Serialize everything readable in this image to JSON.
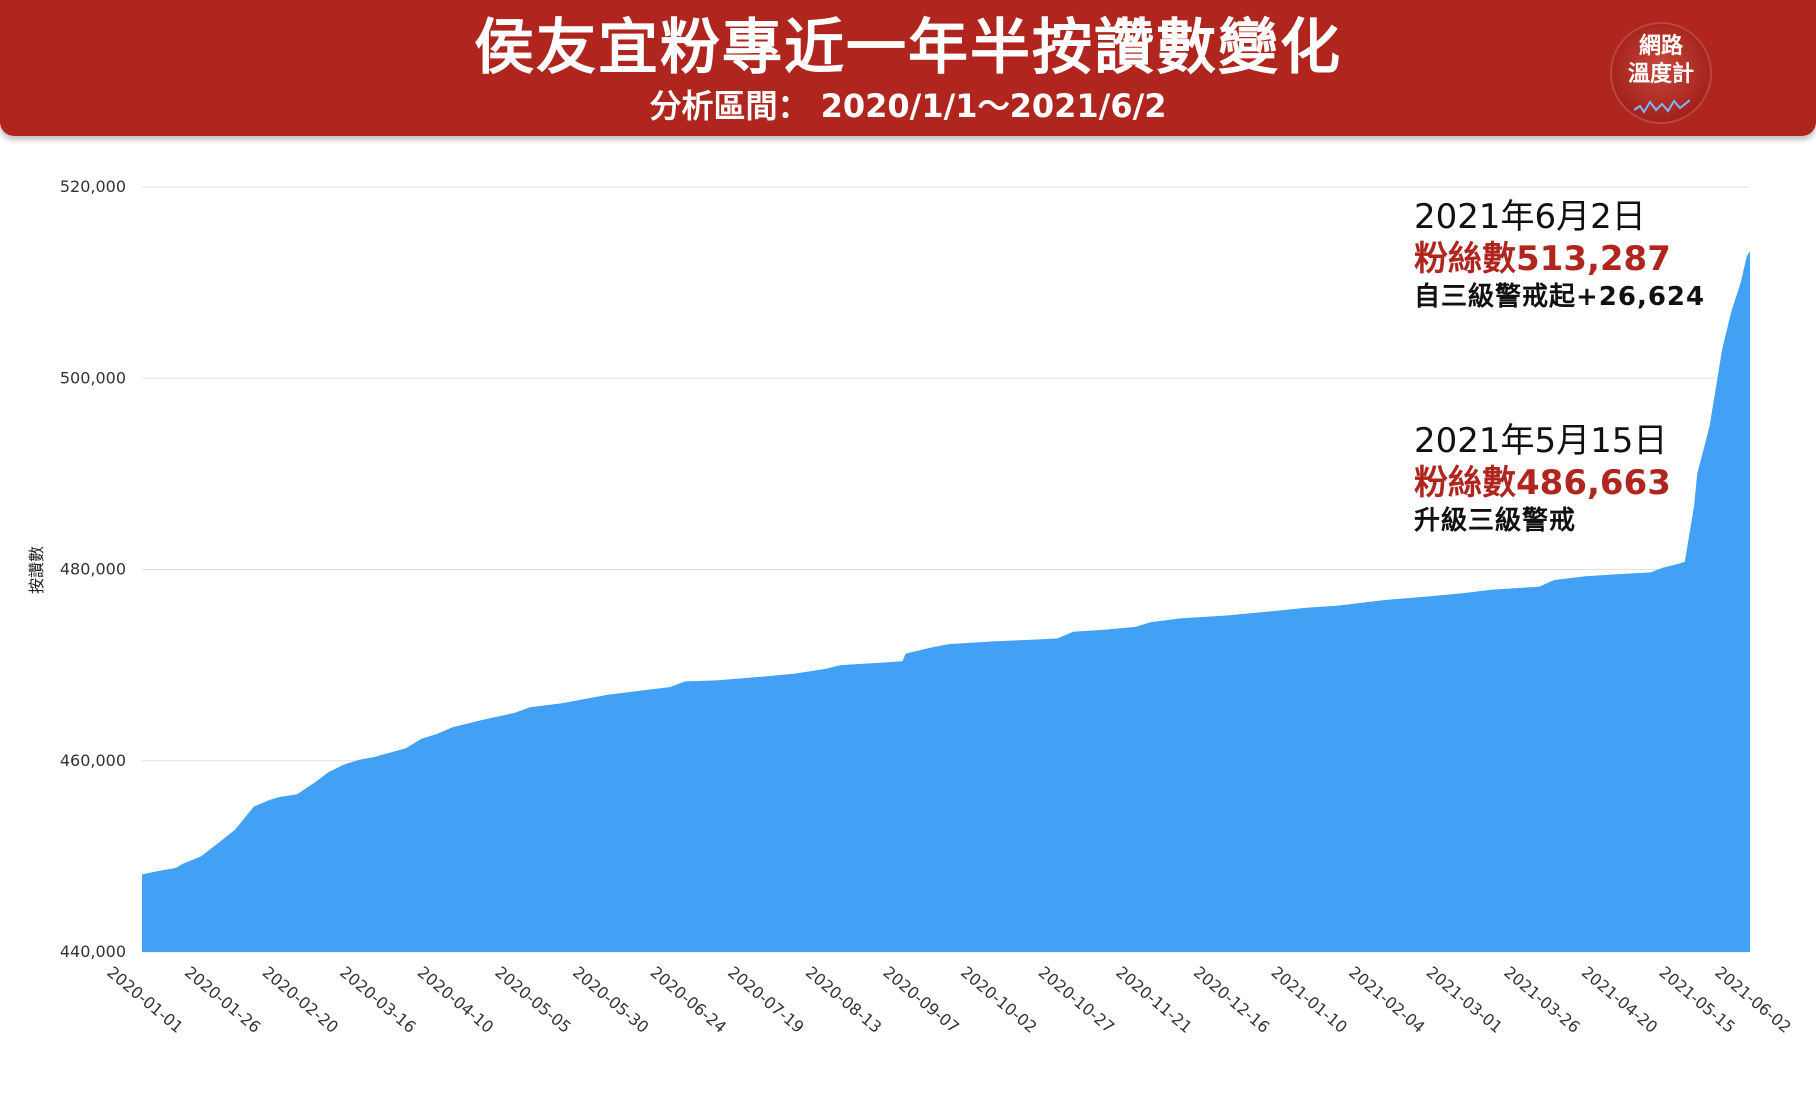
{
  "header": {
    "title": "侯友宜粉專近一年半按讚數變化",
    "subtitle": "分析區間： 2020/1/1～2021/6/2"
  },
  "logo": {
    "line1": "網路",
    "line2": "溫度計"
  },
  "colors": {
    "header": "#b0261e",
    "area": "#42a0f5",
    "annotation_value": "#b0261e"
  },
  "chart_data": {
    "type": "area",
    "title": "",
    "xlabel": "",
    "ylabel": "按讚數",
    "ylim": [
      440000,
      520000
    ],
    "yticks": [
      440000,
      460000,
      480000,
      500000,
      520000
    ],
    "ytick_labels": [
      "440,000",
      "460,000",
      "480,000",
      "500,000",
      "520,000"
    ],
    "xlim": [
      "2020-01-01",
      "2021-06-02"
    ],
    "xtick_labels": [
      "2020-01-01",
      "2020-01-26",
      "2020-02-20",
      "2020-03-16",
      "2020-04-10",
      "2020-05-05",
      "2020-05-30",
      "2020-06-24",
      "2020-07-19",
      "2020-08-13",
      "2020-09-07",
      "2020-10-02",
      "2020-10-27",
      "2020-11-21",
      "2020-12-16",
      "2021-01-10",
      "2021-02-04",
      "2021-03-01",
      "2021-03-26",
      "2021-04-20",
      "2021-05-15",
      "2021-06-02"
    ],
    "grid": true,
    "series": [
      {
        "x": [
          "2020-01-01",
          "2020-01-05",
          "2020-01-12",
          "2020-01-14",
          "2020-01-20",
          "2020-01-26",
          "2020-01-31",
          "2020-02-06",
          "2020-02-09",
          "2020-02-11",
          "2020-02-14",
          "2020-02-20",
          "2020-02-26",
          "2020-03-01",
          "2020-03-06",
          "2020-03-11",
          "2020-03-16",
          "2020-03-26",
          "2020-03-31",
          "2020-04-05",
          "2020-04-10",
          "2020-04-20",
          "2020-04-30",
          "2020-05-05",
          "2020-05-15",
          "2020-05-30",
          "2020-06-09",
          "2020-06-19",
          "2020-06-24",
          "2020-07-04",
          "2020-07-19",
          "2020-07-29",
          "2020-08-08",
          "2020-08-13",
          "2020-08-23",
          "2020-09-02",
          "2020-09-03",
          "2020-09-12",
          "2020-09-17",
          "2020-10-02",
          "2020-10-17",
          "2020-10-22",
          "2020-10-27",
          "2020-11-06",
          "2020-11-16",
          "2020-11-21",
          "2020-12-01",
          "2020-12-16",
          "2021-01-01",
          "2021-01-10",
          "2021-01-20",
          "2021-02-04",
          "2021-02-19",
          "2021-03-01",
          "2021-03-11",
          "2021-03-26",
          "2021-03-31",
          "2021-04-10",
          "2021-04-20",
          "2021-05-01",
          "2021-05-05",
          "2021-05-10",
          "2021-05-12",
          "2021-05-15",
          "2021-05-16",
          "2021-05-20",
          "2021-05-24",
          "2021-05-27",
          "2021-05-30",
          "2021-06-01",
          "2021-06-02"
        ],
        "values": [
          448100,
          448400,
          448800,
          449200,
          450000,
          451500,
          452800,
          455200,
          455600,
          455900,
          456200,
          456500,
          457800,
          458800,
          459600,
          460100,
          460400,
          461300,
          462300,
          462800,
          463500,
          464300,
          465000,
          465600,
          466000,
          466900,
          467300,
          467700,
          468300,
          468400,
          468800,
          469100,
          469600,
          470000,
          470200,
          470400,
          471200,
          471900,
          472200,
          472500,
          472700,
          472800,
          473500,
          473700,
          474000,
          474500,
          474900,
          475200,
          475700,
          476000,
          476200,
          476800,
          477200,
          477500,
          477900,
          478200,
          478900,
          479300,
          479500,
          479700,
          480200,
          480600,
          480800,
          486663,
          490000,
          495000,
          503000,
          507000,
          510000,
          512800,
          513287
        ]
      }
    ],
    "annotations": [
      {
        "date": "2021年6月2日",
        "value_text": "粉絲數513,287",
        "note": "自三級警戒起+26,624"
      },
      {
        "date": "2021年5月15日",
        "value_text": "粉絲數486,663",
        "note": "升級三級警戒"
      }
    ]
  }
}
